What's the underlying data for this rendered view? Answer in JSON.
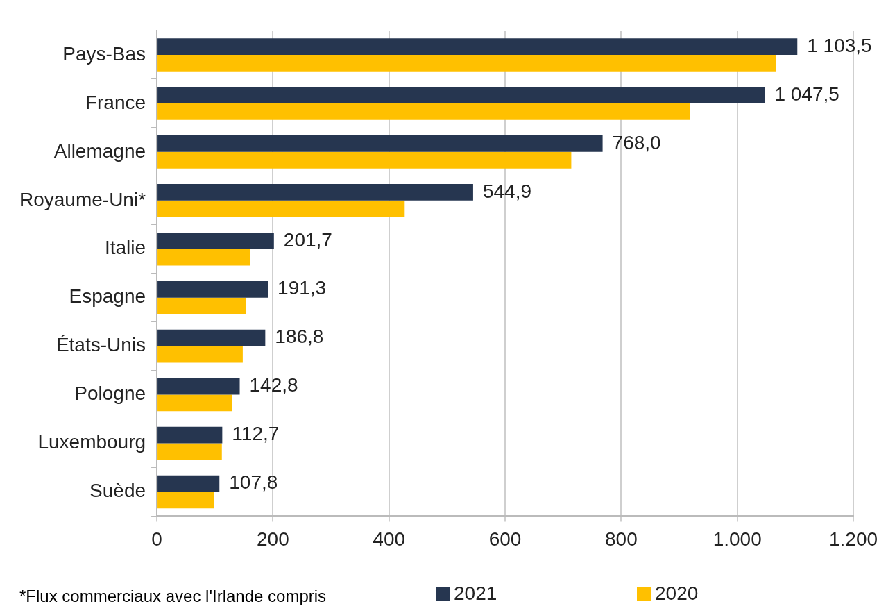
{
  "chart_data": {
    "type": "bar",
    "orientation": "horizontal",
    "categories": [
      "Pays-Bas",
      "France",
      "Allemagne",
      "Royaume-Uni*",
      "Italie",
      "Espagne",
      "États-Unis",
      "Pologne",
      "Luxembourg",
      "Suède"
    ],
    "series": [
      {
        "name": "2021",
        "color": "#263650",
        "values": [
          1103.5,
          1047.5,
          768.0,
          544.9,
          201.7,
          191.3,
          186.8,
          142.8,
          112.7,
          107.8
        ],
        "value_labels": [
          "1 103,5",
          "1 047,5",
          "768,0",
          "544,9",
          "201,7",
          "191,3",
          "186,8",
          "142,8",
          "112,7",
          "107,8"
        ]
      },
      {
        "name": "2020",
        "color": "#ffc000",
        "values": [
          1067,
          919,
          714,
          427,
          161,
          153,
          148,
          130,
          112,
          99
        ]
      }
    ],
    "xlim": [
      0,
      1200
    ],
    "xticks": [
      0,
      200,
      400,
      600,
      800,
      {
        "value": 1000,
        "label": "1.000"
      },
      {
        "value": 1200,
        "label": "1.200"
      }
    ],
    "grid": "x",
    "legend": "bottom",
    "annotations": [
      "*Flux commerciaux avec l'Irlande compris"
    ]
  }
}
